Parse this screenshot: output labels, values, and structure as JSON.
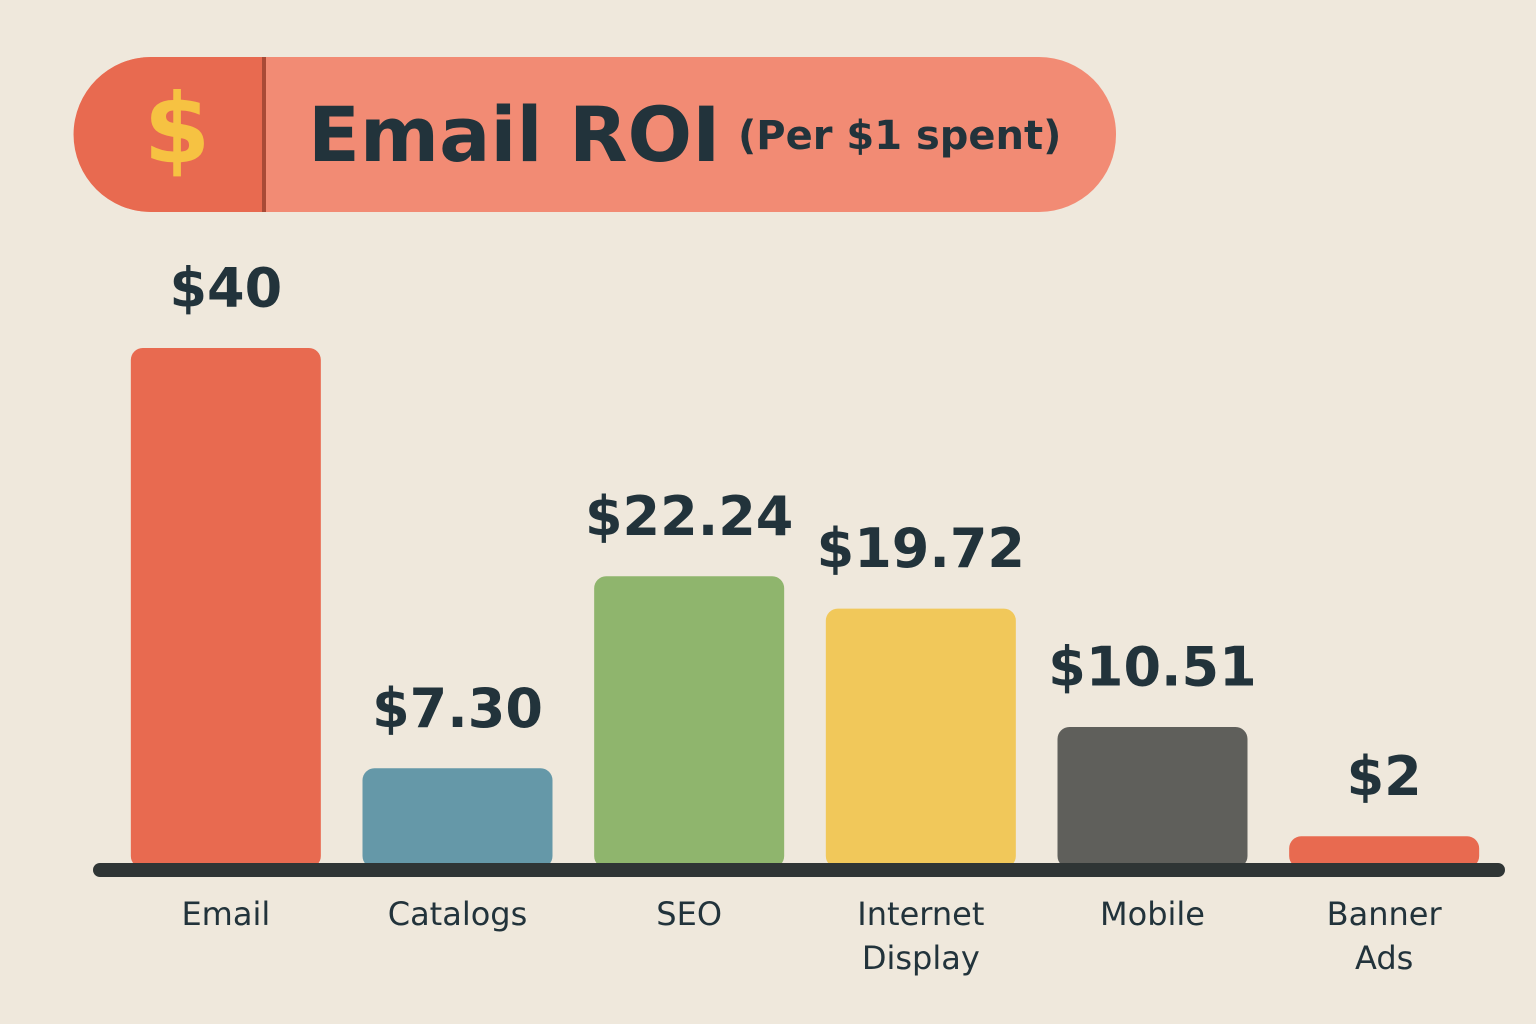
{
  "chart_data": {
    "type": "bar",
    "badge": "$",
    "title": "Email ROI",
    "subtitle": "(Per $1 spent)",
    "categories": [
      "Email",
      "Catalogs",
      "SEO",
      "Internet Display",
      "Mobile",
      "Banner Ads"
    ],
    "values": [
      40,
      7.3,
      22.24,
      19.72,
      10.51,
      2
    ],
    "value_labels": [
      "$40",
      "$7.30",
      "$22.24",
      "$19.72",
      "$10.51",
      "$2"
    ],
    "colors": [
      "#e86a50",
      "#6598a8",
      "#8fb56d",
      "#f1c85a",
      "#5f5f5b",
      "#e86a50"
    ]
  }
}
